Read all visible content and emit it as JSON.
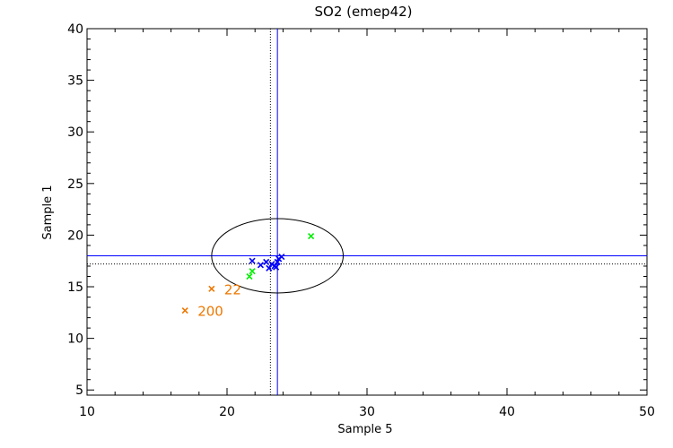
{
  "chart_data": {
    "type": "scatter",
    "title": "SO2 (emep42)",
    "xlabel": "Sample 5",
    "ylabel": "Sample 1",
    "xlim": [
      10,
      50
    ],
    "ylim": [
      4.5,
      40
    ],
    "xticks": [
      10,
      20,
      30,
      40,
      50
    ],
    "yticks": [
      5,
      10,
      15,
      20,
      25,
      30,
      35,
      40
    ],
    "grid": false,
    "series": [
      {
        "color": "#0000ff",
        "marker": "x",
        "points": [
          [
            21.8,
            17.5
          ],
          [
            22.4,
            17.1
          ],
          [
            22.8,
            17.4
          ],
          [
            23.0,
            16.8
          ],
          [
            23.2,
            17.2
          ],
          [
            23.4,
            17.0
          ],
          [
            23.6,
            17.4
          ],
          [
            23.7,
            17.7
          ],
          [
            23.9,
            17.9
          ],
          [
            23.5,
            16.9
          ]
        ]
      },
      {
        "color": "#00ee00",
        "marker": "x",
        "points": [
          [
            21.6,
            16.0
          ],
          [
            21.8,
            16.5
          ],
          [
            26.0,
            19.9
          ]
        ]
      },
      {
        "color": "#ee7700",
        "marker": "x",
        "points": [
          {
            "x": 18.9,
            "y": 14.8,
            "label": "22"
          },
          {
            "x": 17.0,
            "y": 12.7,
            "label": "200"
          }
        ]
      }
    ],
    "reference_lines": {
      "solid_color": "#0000ff",
      "solid_x": 23.6,
      "solid_y": 18.0,
      "dotted_color": "#000000",
      "dotted_x": 23.1,
      "dotted_y": 17.2
    },
    "ellipse": {
      "cx": 23.6,
      "cy": 18.0,
      "rx": 4.7,
      "ry": 3.6,
      "color": "#000000"
    }
  }
}
